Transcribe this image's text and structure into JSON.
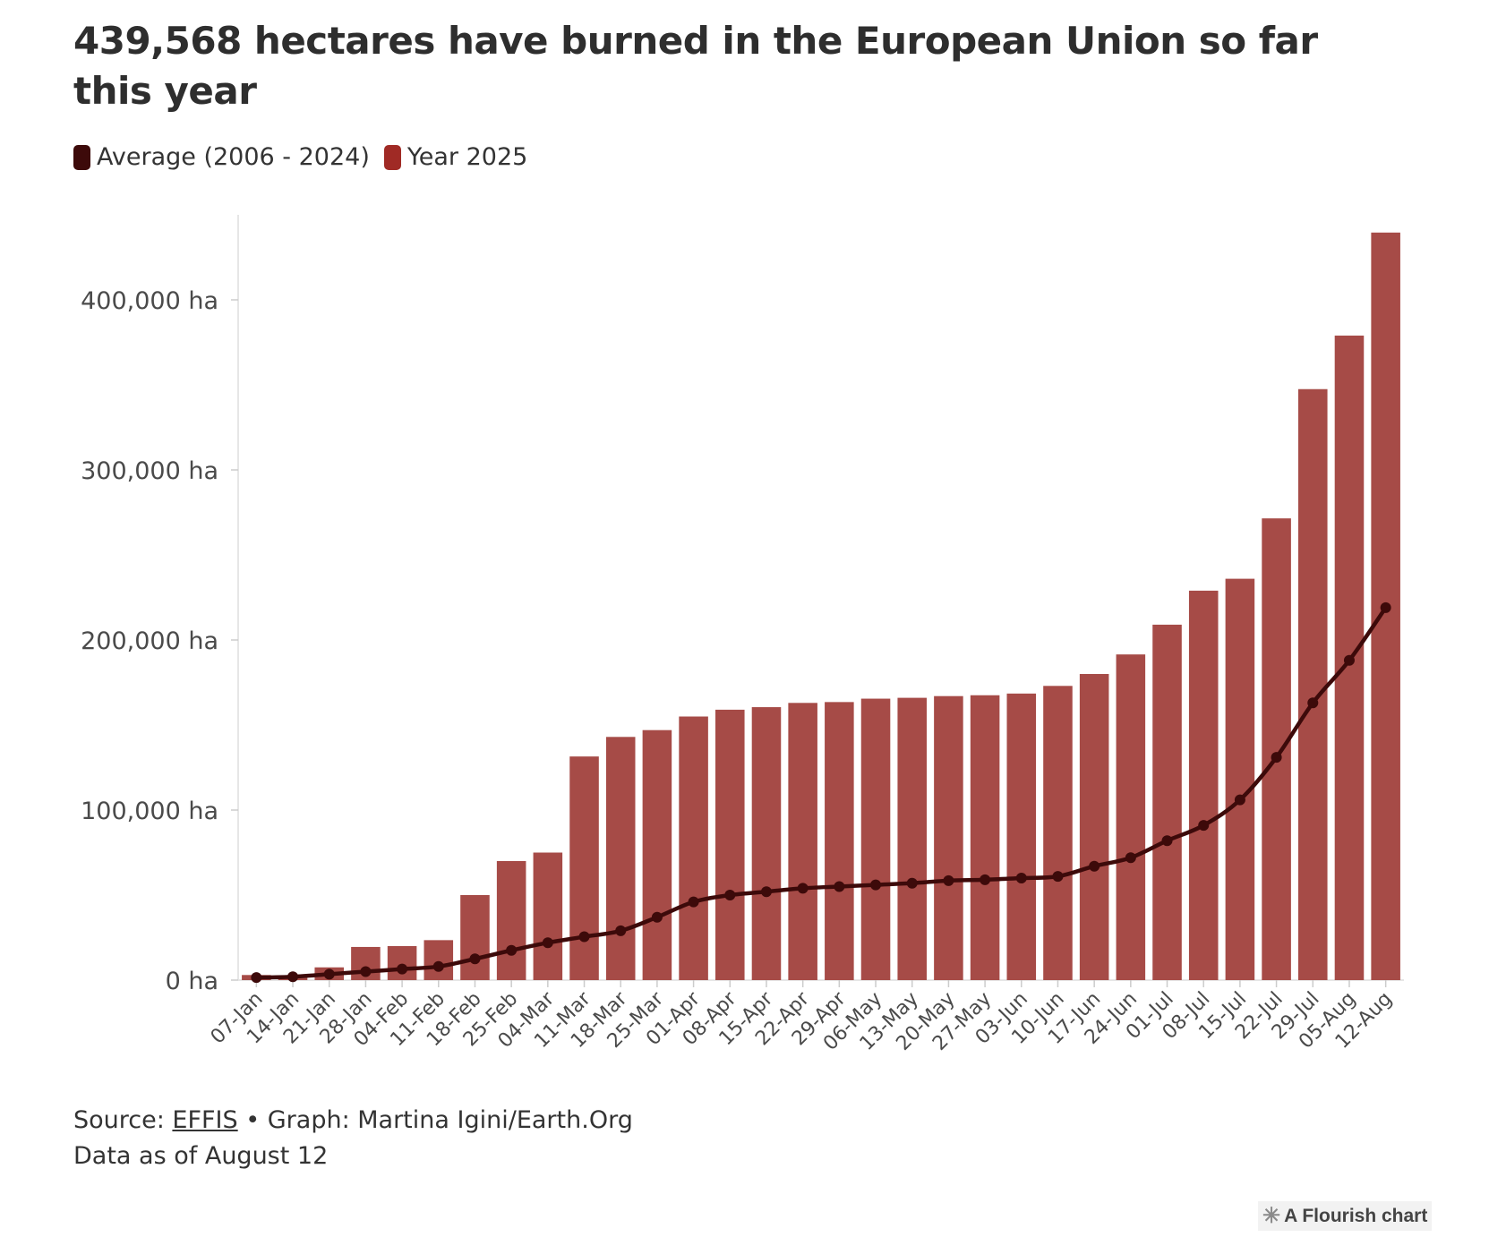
{
  "title": "439,568 hectares have burned in the European Union so far this year",
  "legend": {
    "items": [
      {
        "label": "Average (2006 - 2024)",
        "color": "#3d0a0a"
      },
      {
        "label": "Year 2025",
        "color": "#a02a25"
      }
    ]
  },
  "footer": {
    "source_prefix": "Source: ",
    "source_link": "EFFIS",
    "source_suffix": " • Graph: Martina Igini/Earth.Org",
    "note": "Data as of August 12"
  },
  "flourish": {
    "icon": "flourish-asterisk-icon",
    "label": "A Flourish chart"
  },
  "colors": {
    "bar": "#a64b47",
    "line": "#3d0a0a",
    "axis": "#e6e6e6"
  },
  "chart_data": {
    "type": "bar",
    "title": "439,568 hectares have burned in the European Union so far this year",
    "categories": [
      "07-Jan",
      "14-Jan",
      "21-Jan",
      "28-Jan",
      "04-Feb",
      "11-Feb",
      "18-Feb",
      "25-Feb",
      "04-Mar",
      "11-Mar",
      "18-Mar",
      "25-Mar",
      "01-Apr",
      "08-Apr",
      "15-Apr",
      "22-Apr",
      "29-Apr",
      "06-May",
      "13-May",
      "20-May",
      "27-May",
      "03-Jun",
      "10-Jun",
      "17-Jun",
      "24-Jun",
      "01-Jul",
      "08-Jul",
      "15-Jul",
      "22-Jul",
      "29-Jul",
      "05-Aug",
      "12-Aug"
    ],
    "series": [
      {
        "name": "Year 2025",
        "kind": "bar",
        "values": [
          3000,
          2000,
          7500,
          19500,
          20000,
          23500,
          50000,
          70000,
          75000,
          131500,
          143000,
          147000,
          155000,
          159000,
          160500,
          163000,
          163500,
          165500,
          166000,
          167000,
          167500,
          168500,
          173000,
          180000,
          191500,
          209000,
          229000,
          236000,
          271500,
          347500,
          379000,
          439568
        ]
      },
      {
        "name": "Average (2006 - 2024)",
        "kind": "line",
        "values": [
          1500,
          2000,
          3500,
          5000,
          6500,
          8000,
          12500,
          17500,
          22000,
          25500,
          29000,
          37000,
          46000,
          50000,
          52000,
          54000,
          55000,
          56000,
          57000,
          58500,
          59000,
          60000,
          61000,
          67000,
          72000,
          82000,
          91000,
          106000,
          131000,
          163000,
          188000,
          219000
        ]
      }
    ],
    "y_ticks": [
      {
        "value": 0,
        "label": "0 ha"
      },
      {
        "value": 100000,
        "label": "100,000 ha"
      },
      {
        "value": 200000,
        "label": "200,000 ha"
      },
      {
        "value": 300000,
        "label": "300,000 ha"
      },
      {
        "value": 400000,
        "label": "400,000 ha"
      }
    ],
    "ylim": [
      0,
      450000
    ],
    "grid": false,
    "legend_position": "top-left",
    "xlabel": "",
    "ylabel": ""
  }
}
